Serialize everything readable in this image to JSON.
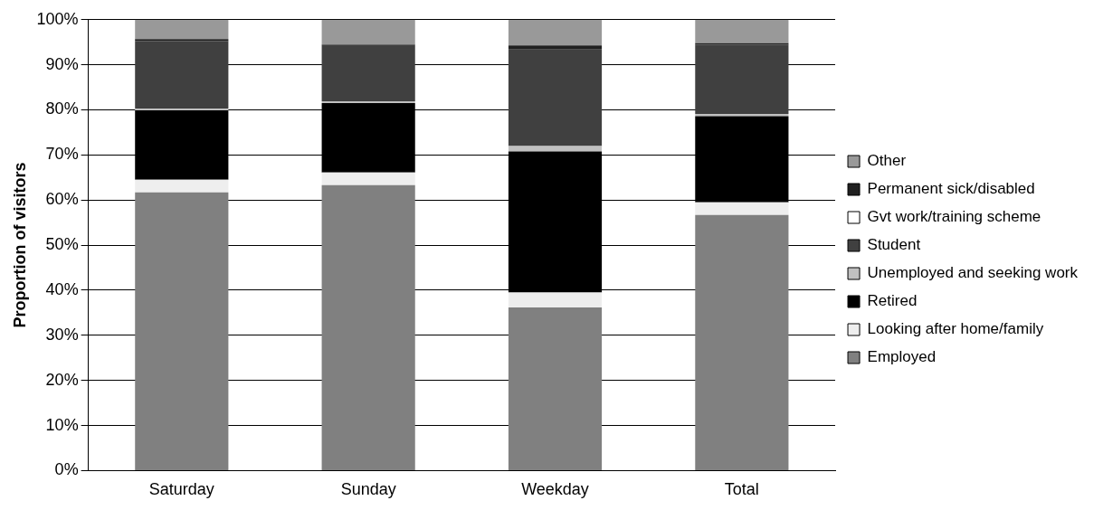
{
  "chart_data": {
    "type": "bar",
    "stacked": true,
    "ylabel": "Proportion of visitors",
    "categories": [
      "Saturday",
      "Sunday",
      "Weekday",
      "Total"
    ],
    "series": [
      {
        "name": "Employed",
        "color": "#808080",
        "values": [
          61.7,
          63.3,
          36.2,
          56.7
        ]
      },
      {
        "name": "Looking after home/family",
        "color": "#eeeeee",
        "values": [
          2.8,
          2.8,
          3.3,
          2.8
        ]
      },
      {
        "name": "Retired",
        "color": "#000000",
        "values": [
          15.4,
          15.4,
          31.3,
          19.1
        ]
      },
      {
        "name": "Unemployed and seeking work",
        "color": "#c0c0c0",
        "values": [
          0.4,
          0.4,
          1.2,
          0.5
        ]
      },
      {
        "name": "Student",
        "color": "#404040",
        "values": [
          15.0,
          12.6,
          21.4,
          15.4
        ]
      },
      {
        "name": "Gvt work/training scheme",
        "color": "#ffffff",
        "values": [
          0,
          0,
          0,
          0
        ]
      },
      {
        "name": "Permanent sick/disabled",
        "color": "#202020",
        "values": [
          0.4,
          0,
          0.9,
          0.3
        ]
      },
      {
        "name": "Other",
        "color": "#999999",
        "values": [
          4.3,
          5.5,
          5.7,
          5.2
        ]
      }
    ],
    "ylim": [
      0,
      100
    ],
    "yticks": [
      {
        "value": 0,
        "label": "0%"
      },
      {
        "value": 10,
        "label": "10%"
      },
      {
        "value": 20,
        "label": "20%"
      },
      {
        "value": 30,
        "label": "30%"
      },
      {
        "value": 40,
        "label": "40%"
      },
      {
        "value": 50,
        "label": "50%"
      },
      {
        "value": 60,
        "label": "60%"
      },
      {
        "value": 70,
        "label": "70%"
      },
      {
        "value": 80,
        "label": "80%"
      },
      {
        "value": 90,
        "label": "90%"
      },
      {
        "value": 100,
        "label": "100%"
      }
    ],
    "grid": "y",
    "legend": "right"
  }
}
